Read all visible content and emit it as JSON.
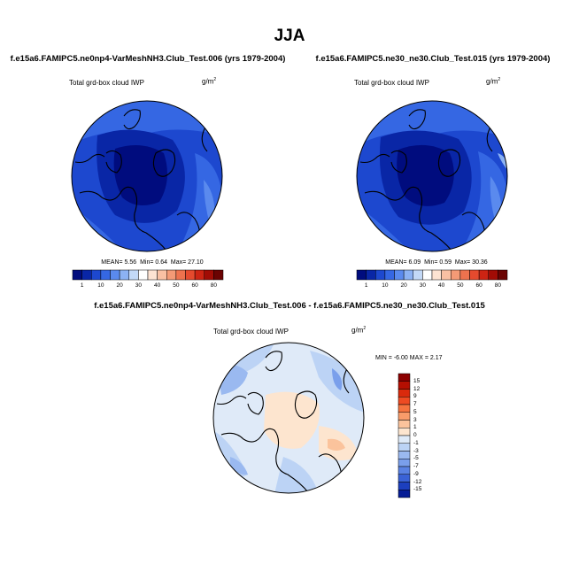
{
  "title": "JJA",
  "panels": [
    {
      "case": "f.e15a6.FAMIPC5.ne0np4-VarMeshNH3.Club_Test.006 (yrs 1979-2004)",
      "variable": "Total grd-box cloud IWP",
      "units_base": "g/m",
      "units_exp": "2",
      "mean_label": "MEAN=",
      "mean": "5.56",
      "min_label": "Min=",
      "min": "0.64",
      "max_label": "Max=",
      "max": "27.10"
    },
    {
      "case": "f.e15a6.FAMIPC5.ne30_ne30.Club_Test.015 (yrs 1979-2004)",
      "variable": "Total grd-box cloud IWP",
      "units_base": "g/m",
      "units_exp": "2",
      "mean_label": "MEAN=",
      "mean": "6.09",
      "min_label": "Min=",
      "min": "0.59",
      "max_label": "Max=",
      "max": "30.36"
    }
  ],
  "diff_panel": {
    "case": "f.e15a6.FAMIPC5.ne0np4-VarMeshNH3.Club_Test.006 - f.e15a6.FAMIPC5.ne30_ne30.Club_Test.015",
    "variable": "Total grd-box cloud IWP",
    "units_base": "g/m",
    "units_exp": "2",
    "min_label": "MIN =",
    "min": "-6.00",
    "max_label": "MAX =",
    "max": "2.17"
  },
  "chart_data": [
    {
      "type": "heatmap",
      "projection": "north polar stereographic",
      "colorbar": {
        "orientation": "horizontal",
        "labels": [
          "1",
          "10",
          "20",
          "30",
          "40",
          "50",
          "60",
          "80"
        ],
        "colors": [
          "#000c7e",
          "#0926a6",
          "#1d48cf",
          "#3567e3",
          "#5a8aee",
          "#8cb2f3",
          "#c3d9f7",
          "#ffffff",
          "#fde3d2",
          "#f9c0a3",
          "#f49a76",
          "#ee724e",
          "#e54a2e",
          "#cd2413",
          "#a10c05",
          "#6b0302"
        ]
      }
    },
    {
      "type": "heatmap",
      "projection": "north polar stereographic",
      "colorbar": {
        "orientation": "horizontal",
        "labels": [
          "1",
          "10",
          "20",
          "30",
          "40",
          "50",
          "60",
          "80"
        ],
        "colors": [
          "#000c7e",
          "#0926a6",
          "#1d48cf",
          "#3567e3",
          "#5a8aee",
          "#8cb2f3",
          "#c3d9f7",
          "#ffffff",
          "#fde3d2",
          "#f9c0a3",
          "#f49a76",
          "#ee724e",
          "#e54a2e",
          "#cd2413",
          "#a10c05",
          "#6b0302"
        ]
      }
    },
    {
      "type": "heatmap",
      "projection": "north polar stereographic",
      "colorbar": {
        "orientation": "vertical",
        "labels": [
          "15",
          "12",
          "9",
          "7",
          "5",
          "3",
          "1",
          "0",
          "-1",
          "-3",
          "-5",
          "-7",
          "-9",
          "-12",
          "-15"
        ],
        "colors": [
          "#8c0000",
          "#b50f02",
          "#d92a0c",
          "#ee4b22",
          "#f6743f",
          "#f99c6a",
          "#fbc39c",
          "#fde5cf",
          "#dfeaf8",
          "#bcd3f5",
          "#9ab9f0",
          "#7a9feb",
          "#5a82e3",
          "#3a62d6",
          "#1c3fbe",
          "#061c95"
        ]
      }
    }
  ]
}
